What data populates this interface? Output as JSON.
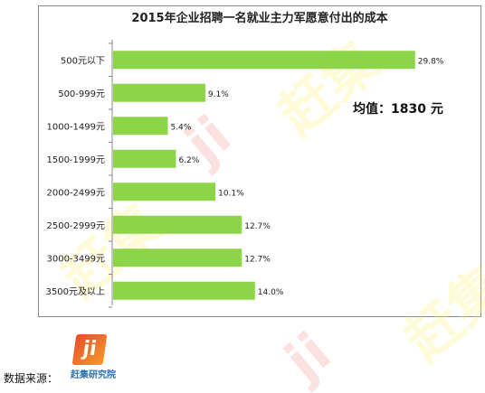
{
  "chart_data": {
    "type": "bar",
    "orientation": "horizontal",
    "title": "2015年企业招聘一名就业主力军愿意付出的成本",
    "categories": [
      "500元以下",
      "500-999元",
      "1000-1499元",
      "1500-1999元",
      "2000-2499元",
      "2500-2999元",
      "3000-3499元",
      "3500元及以上"
    ],
    "values": [
      29.8,
      9.1,
      5.4,
      6.2,
      10.1,
      12.7,
      12.7,
      14.0
    ],
    "value_labels": [
      "29.8%",
      "9.1%",
      "5.4%",
      "6.2%",
      "10.1%",
      "12.7%",
      "12.7%",
      "14.0%"
    ],
    "xlim": [
      0,
      30
    ],
    "bar_color": "#8dd548",
    "grid": false,
    "annotation": "均值：1830 元"
  },
  "source": {
    "label": "数据来源：",
    "logo_text": "赶集研究院",
    "logo_mark": "ji"
  },
  "watermark": {
    "text": "赶集",
    "logo_mark": "ji"
  }
}
